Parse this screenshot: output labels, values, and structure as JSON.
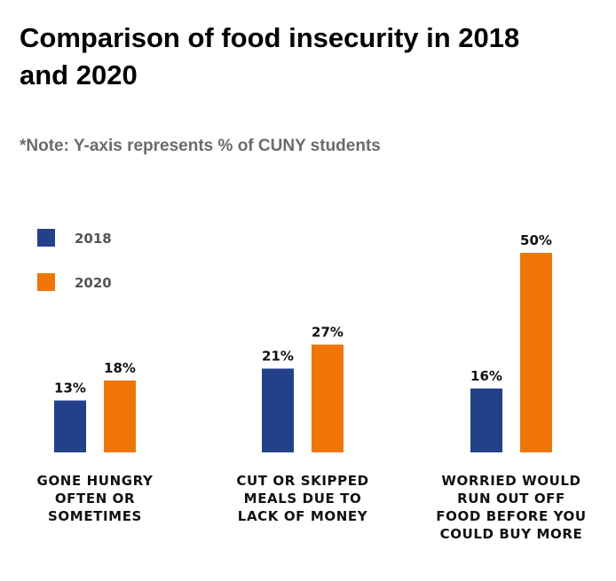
{
  "chart_data": {
    "type": "bar",
    "title": "Comparison of food insecurity in 2018 and 2020",
    "subtitle": "*Note: Y-axis represents % of CUNY students",
    "categories": [
      [
        "GONE HUNGRY",
        "OFTEN OR",
        "SOMETIMES"
      ],
      [
        "CUT OR SKIPPED",
        "MEALS DUE TO",
        "LACK OF MONEY"
      ],
      [
        "WORRIED WOULD",
        "RUN OUT OFF",
        "FOOD BEFORE YOU",
        "COULD BUY MORE"
      ]
    ],
    "series": [
      {
        "name": "2018",
        "color": "#234188",
        "values": [
          13,
          21,
          16
        ],
        "labels": [
          "13%",
          "21%",
          "16%"
        ]
      },
      {
        "name": "2020",
        "color": "#f07508",
        "values": [
          18,
          27,
          50
        ],
        "labels": [
          "18%",
          "27%",
          "50%"
        ]
      }
    ],
    "ylim": [
      0,
      50
    ],
    "legend": "top-left",
    "grid": false
  }
}
